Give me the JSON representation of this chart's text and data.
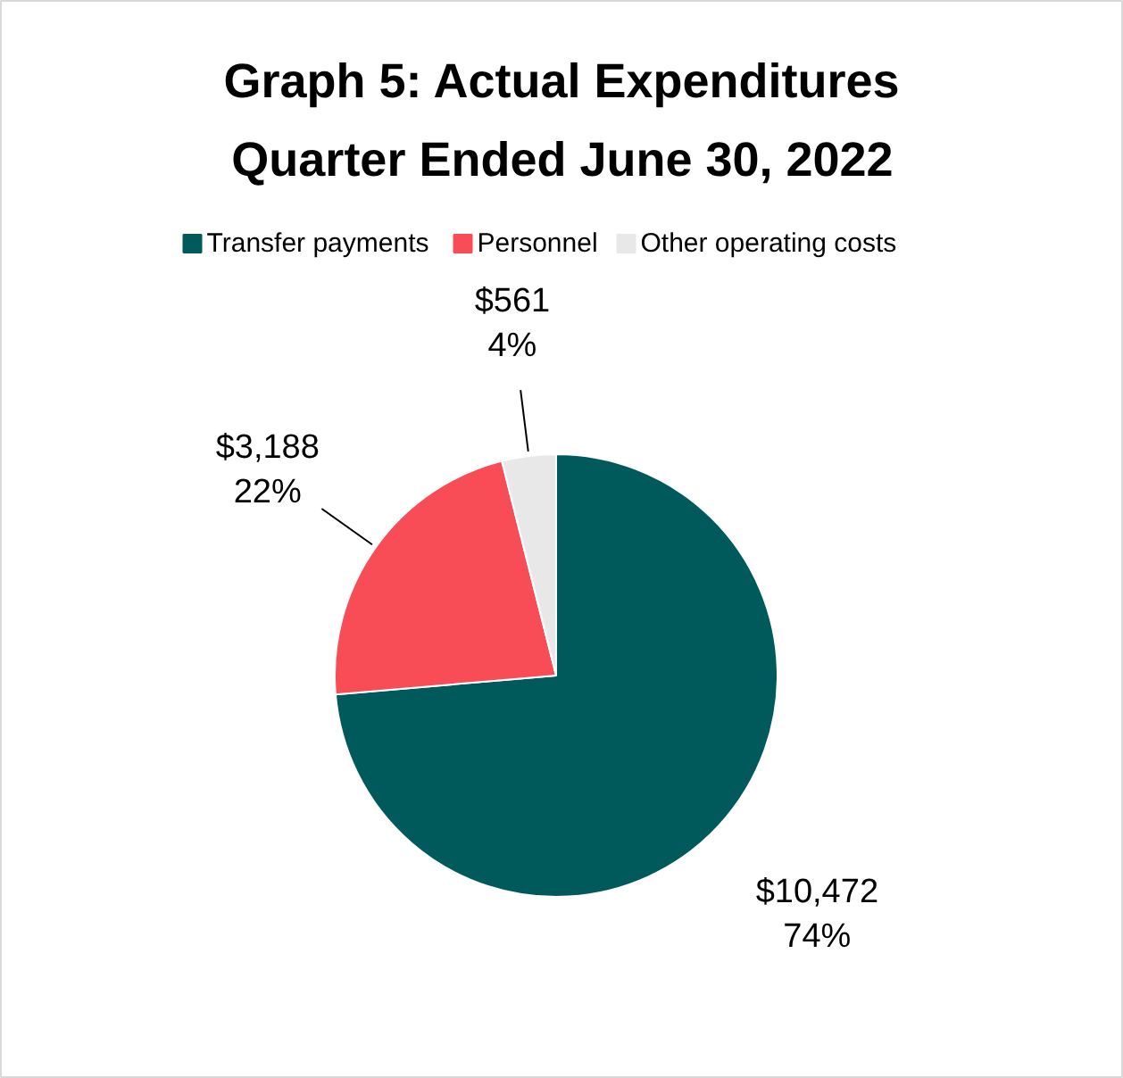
{
  "chart_data": {
    "type": "pie",
    "title": "Graph 5: Actual Expenditures\nQuarter Ended June 30, 2022",
    "categories": [
      "Transfer payments",
      "Personnel",
      "Other operating costs"
    ],
    "values": [
      10472,
      3188,
      561
    ],
    "colors": [
      "#005a5b",
      "#f84d57",
      "#e8e8e8"
    ],
    "value_labels": [
      "$10,472\n74%",
      "$3,188\n22%",
      "$561\n4%"
    ],
    "legend": "top"
  }
}
